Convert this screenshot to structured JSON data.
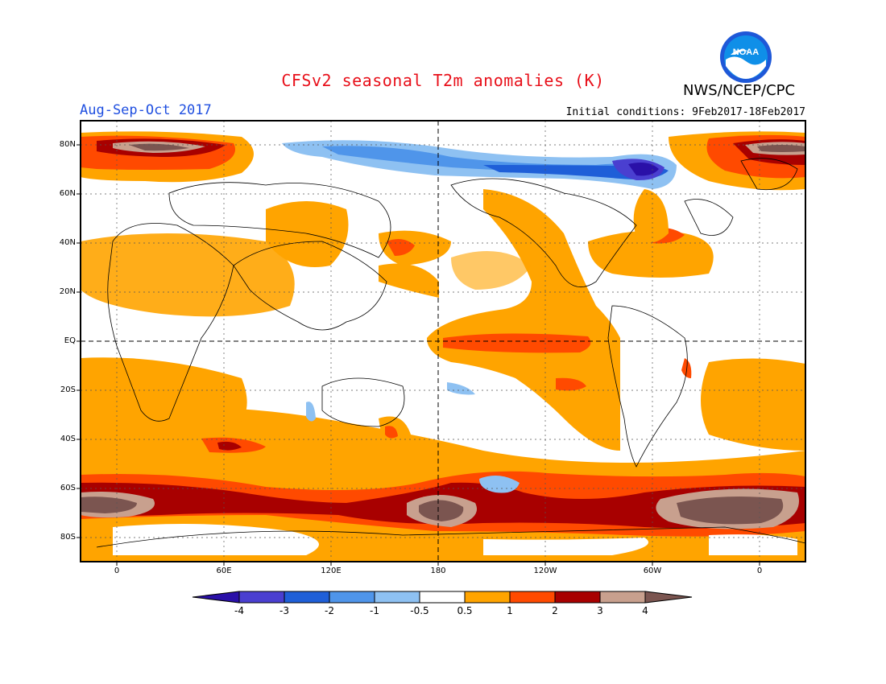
{
  "title": "CFSv2 seasonal T2m anomalies (K)",
  "agency": "NWS/NCEP/CPC",
  "logo_text": "NOAA",
  "season": "Aug-Sep-Oct 2017",
  "initial_conditions": "Initial conditions: 9Feb2017-18Feb2017",
  "lat_labels": [
    "80N",
    "60N",
    "40N",
    "20N",
    "EQ",
    "20S",
    "40S",
    "60S",
    "80S"
  ],
  "lon_labels": [
    "0",
    "60E",
    "120E",
    "180",
    "120W",
    "60W",
    "0"
  ],
  "colorbar": {
    "labels": [
      "-4",
      "-3",
      "-2",
      "-1",
      "-0.5",
      "0.5",
      "1",
      "2",
      "3",
      "4"
    ],
    "colors": [
      "#2a10a8",
      "#4a3fd0",
      "#1f5fd8",
      "#4f95ea",
      "#8ec1f2",
      "#ffffff",
      "#ffa400",
      "#ff4a00",
      "#a80000",
      "#c8a08e",
      "#7b5550"
    ]
  },
  "colors": {
    "title": "#e8101a",
    "season": "#1f4fe0",
    "map_frame": "#000000"
  }
}
